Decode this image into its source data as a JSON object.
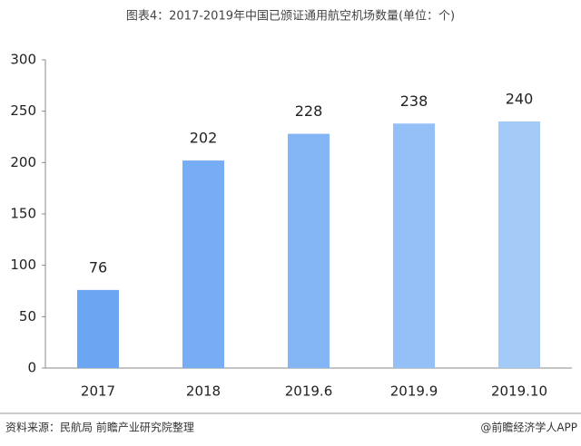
{
  "chart_data": {
    "type": "bar",
    "title": "图表4：2017-2019年中国已颁证通用航空机场数量(单位：个)",
    "categories": [
      "2017",
      "2018",
      "2019.6",
      "2019.9",
      "2019.10"
    ],
    "values": [
      76,
      202,
      228,
      238,
      240
    ],
    "colors": [
      "#6ca6f3",
      "#76adf4",
      "#84b6f5",
      "#94c0f7",
      "#a4caf8"
    ],
    "ylim": [
      0,
      300
    ],
    "yticks": [
      0,
      50,
      100,
      150,
      200,
      250,
      300
    ],
    "grid": false
  },
  "footer": {
    "source": "资料来源：民航局 前瞻产业研究院整理",
    "brand": "@前瞻经济学人APP"
  }
}
